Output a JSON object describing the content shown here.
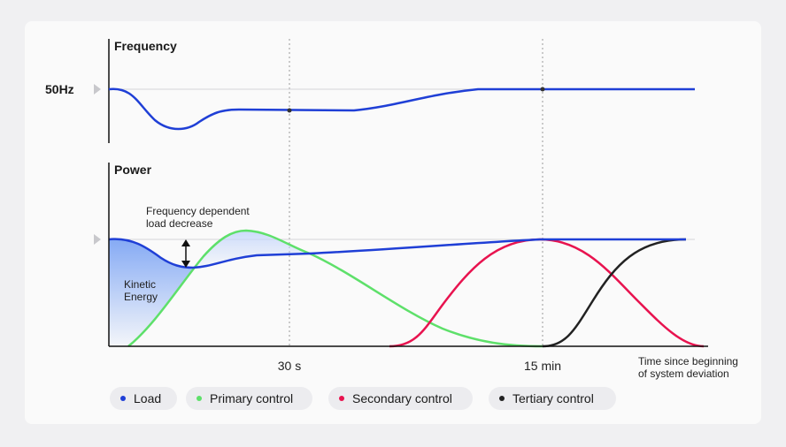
{
  "frequency": {
    "title": "Frequency",
    "nominal_label": "50Hz"
  },
  "power": {
    "title": "Power"
  },
  "annotations": {
    "load_decrease_line1": "Frequency dependent",
    "load_decrease_line2": "load decrease",
    "kinetic_line1": "Kinetic",
    "kinetic_line2": "Energy"
  },
  "time_axis": {
    "tick_30s": "30 s",
    "tick_15min": "15 min",
    "caption_line1": "Time since beginning",
    "caption_line2": "of system deviation"
  },
  "legend": [
    {
      "label": "Load",
      "color": "#1f3fd6"
    },
    {
      "label": "Primary control",
      "color": "#5ee06a"
    },
    {
      "label": "Secondary control",
      "color": "#e8134f"
    },
    {
      "label": "Tertiary control",
      "color": "#222222"
    }
  ],
  "colors": {
    "load": "#1f3fd6",
    "primary": "#5ee06a",
    "secondary": "#e8134f",
    "tertiary": "#222222",
    "kinetic_fill": "#8fb0f5"
  }
}
